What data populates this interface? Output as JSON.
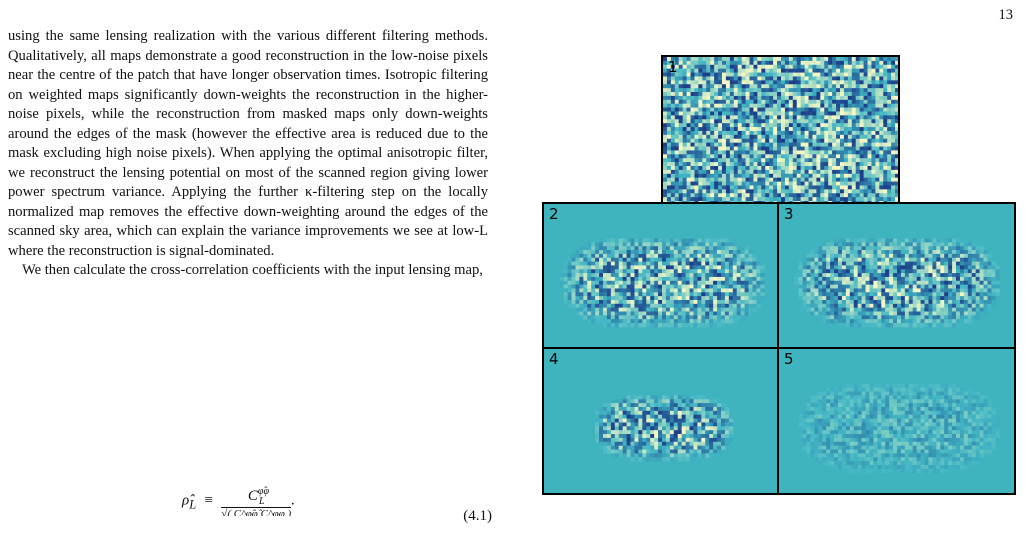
{
  "page": {
    "number": "13"
  },
  "body_text": {
    "paragraph1": "using the same lensing realization with the various different filtering methods. Qualitatively, all maps demonstrate a good reconstruction in the low-noise pixels near the centre of the patch that have longer observation times. Isotropic filtering on weighted maps significantly down-weights the reconstruction in the higher-noise pixels, while the reconstruction from masked maps only down-weights around the edges of the mask (however the effective area is reduced due to the mask excluding high noise pixels). When applying the optimal anisotropic filter, we reconstruct the lensing potential on most of the scanned region giving lower power spectrum variance. Applying the further κ-filtering step on the locally normalized map removes the effective down-weighting around the edges of the scanned sky area, which can explain the variance improvements we see at low-L where the reconstruction is signal-dominated.",
    "paragraph2": "We then calculate the cross-correlation coefficients with the input lensing map,"
  },
  "equation": {
    "lhs": "ρ̂",
    "lhs_sub": "L",
    "equiv": "≡",
    "numerator": "C",
    "num_sup": "φ̂φ",
    "num_sub": "L",
    "denominator": "√( C^φ̂φ̂ C^φφ )",
    "number": "(4.1)"
  },
  "figure": {
    "panel_labels": [
      "1",
      "2",
      "3",
      "4",
      "5"
    ],
    "colors": {
      "background": "#3fb4bf",
      "low": "#1d3f8a",
      "mid": "#41b6c4",
      "high": "#f6f8c4"
    }
  }
}
